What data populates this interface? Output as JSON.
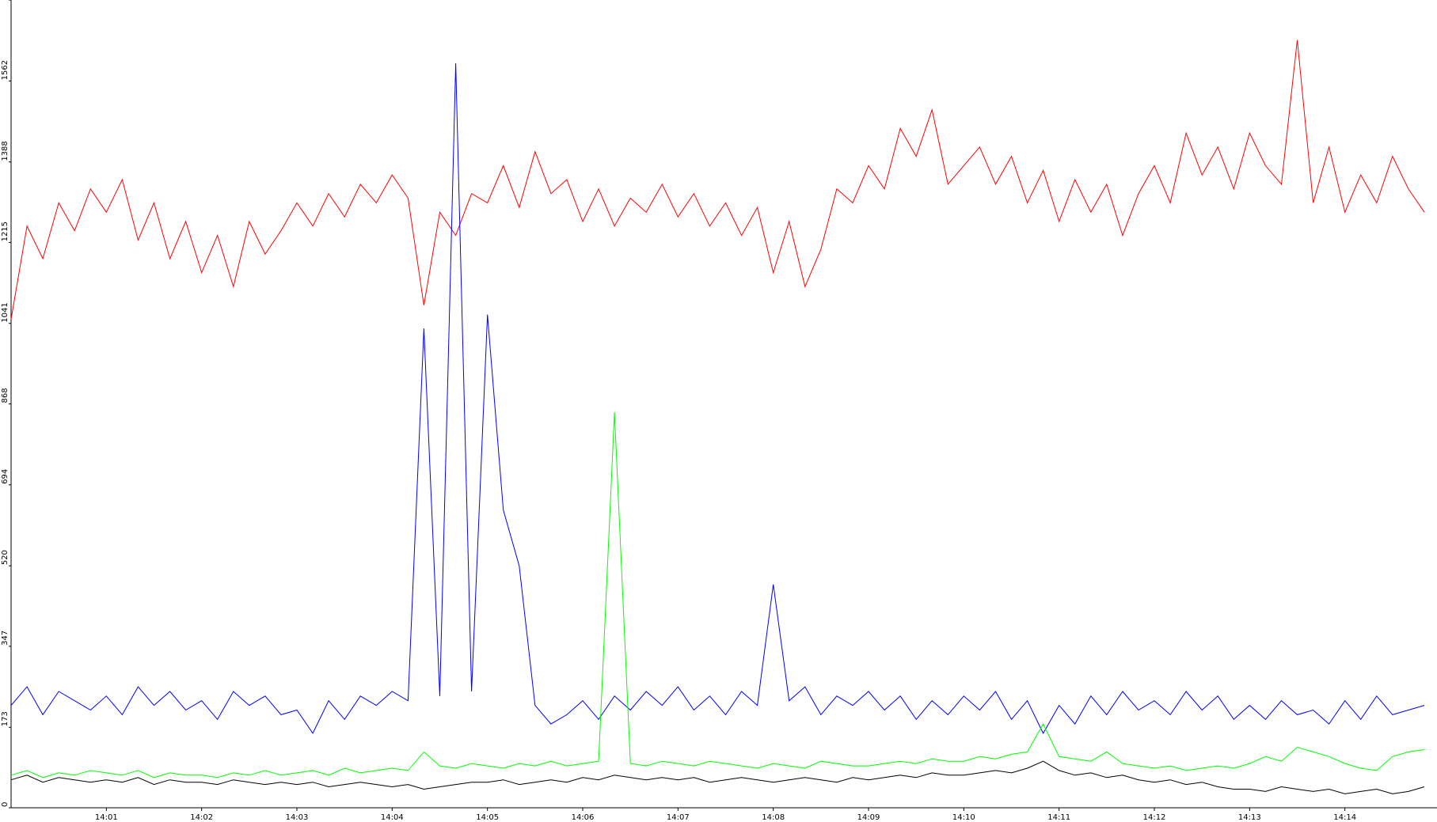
{
  "chart_data": {
    "type": "line",
    "x": [
      0,
      10,
      20,
      30,
      40,
      50,
      60,
      70,
      80,
      90,
      100,
      110,
      120,
      130,
      140,
      150,
      160,
      170,
      180,
      190,
      200,
      210,
      220,
      230,
      240,
      250,
      260,
      270,
      280,
      290,
      300,
      310,
      320,
      330,
      340,
      350,
      360,
      370,
      380,
      390,
      400,
      410,
      420,
      430,
      440,
      450,
      460,
      470,
      480,
      490,
      500,
      510,
      520,
      530,
      540,
      550,
      560,
      570,
      580,
      590,
      600,
      610,
      620,
      630,
      640,
      650,
      660,
      670,
      680,
      690,
      700,
      710,
      720,
      730,
      740,
      750,
      760,
      770,
      780,
      790,
      800,
      810,
      820,
      830,
      840,
      850,
      860,
      870,
      880,
      890
    ],
    "xlim": [
      0,
      898
    ],
    "xticks": [
      {
        "value": 60,
        "label": "14:01"
      },
      {
        "value": 120,
        "label": "14:02"
      },
      {
        "value": 180,
        "label": "14:03"
      },
      {
        "value": 240,
        "label": "14:04"
      },
      {
        "value": 300,
        "label": "14:05"
      },
      {
        "value": 360,
        "label": "14:06"
      },
      {
        "value": 420,
        "label": "14:07"
      },
      {
        "value": 480,
        "label": "14:08"
      },
      {
        "value": 540,
        "label": "14:09"
      },
      {
        "value": 600,
        "label": "14:10"
      },
      {
        "value": 660,
        "label": "14:11"
      },
      {
        "value": 720,
        "label": "14:12"
      },
      {
        "value": 780,
        "label": "14:13"
      },
      {
        "value": 840,
        "label": "14:14"
      }
    ],
    "ylim": [
      0,
      1736
    ],
    "yticks": [
      0,
      173,
      347,
      520,
      694,
      868,
      1041,
      1215,
      1388,
      1562,
      1736
    ],
    "series": [
      {
        "color": "#ff0000",
        "values": [
          1050,
          1250,
          1180,
          1300,
          1240,
          1330,
          1280,
          1350,
          1220,
          1300,
          1180,
          1260,
          1150,
          1230,
          1120,
          1260,
          1190,
          1240,
          1300,
          1250,
          1320,
          1270,
          1340,
          1300,
          1360,
          1310,
          1080,
          1280,
          1230,
          1320,
          1300,
          1380,
          1290,
          1410,
          1320,
          1350,
          1260,
          1330,
          1250,
          1310,
          1280,
          1340,
          1270,
          1320,
          1250,
          1300,
          1230,
          1290,
          1150,
          1260,
          1120,
          1200,
          1330,
          1300,
          1380,
          1330,
          1460,
          1400,
          1500,
          1340,
          1380,
          1420,
          1340,
          1400,
          1300,
          1370,
          1260,
          1350,
          1280,
          1340,
          1230,
          1320,
          1380,
          1300,
          1450,
          1360,
          1420,
          1330,
          1450,
          1380,
          1340,
          1650,
          1300,
          1420,
          1280,
          1360,
          1300,
          1400,
          1330,
          1280
        ]
      },
      {
        "color": "#0000ff",
        "values": [
          220,
          260,
          200,
          250,
          230,
          210,
          240,
          200,
          260,
          220,
          250,
          210,
          230,
          190,
          250,
          220,
          240,
          200,
          210,
          160,
          230,
          190,
          240,
          220,
          250,
          230,
          1030,
          240,
          1600,
          250,
          1060,
          640,
          520,
          220,
          180,
          200,
          230,
          190,
          240,
          210,
          250,
          220,
          260,
          210,
          240,
          200,
          250,
          220,
          480,
          230,
          260,
          200,
          240,
          220,
          250,
          210,
          240,
          190,
          230,
          200,
          240,
          210,
          250,
          190,
          230,
          160,
          220,
          180,
          240,
          200,
          250,
          210,
          230,
          200,
          250,
          210,
          240,
          190,
          220,
          190,
          230,
          200,
          210,
          180,
          230,
          190,
          240,
          200,
          210,
          220
        ]
      },
      {
        "color": "#000000",
        "values": [
          60,
          70,
          55,
          65,
          60,
          55,
          60,
          55,
          65,
          50,
          60,
          55,
          55,
          50,
          60,
          55,
          50,
          55,
          50,
          55,
          45,
          50,
          55,
          50,
          45,
          50,
          40,
          45,
          50,
          55,
          55,
          60,
          50,
          55,
          60,
          55,
          65,
          60,
          70,
          65,
          60,
          65,
          60,
          65,
          55,
          60,
          65,
          60,
          55,
          60,
          65,
          60,
          55,
          65,
          60,
          65,
          70,
          65,
          75,
          70,
          70,
          75,
          80,
          75,
          85,
          100,
          80,
          70,
          75,
          65,
          70,
          60,
          55,
          60,
          50,
          55,
          45,
          40,
          40,
          35,
          45,
          40,
          35,
          40,
          30,
          35,
          40,
          30,
          35,
          45
        ]
      },
      {
        "color": "#00ff00",
        "values": [
          70,
          80,
          65,
          75,
          70,
          80,
          75,
          70,
          80,
          65,
          75,
          70,
          70,
          65,
          75,
          70,
          80,
          70,
          75,
          80,
          70,
          85,
          75,
          80,
          85,
          80,
          120,
          90,
          85,
          95,
          90,
          85,
          95,
          90,
          100,
          90,
          95,
          100,
          850,
          95,
          90,
          100,
          95,
          90,
          100,
          95,
          90,
          85,
          95,
          90,
          85,
          100,
          95,
          90,
          90,
          95,
          100,
          95,
          105,
          100,
          100,
          110,
          105,
          115,
          120,
          180,
          110,
          105,
          100,
          120,
          95,
          90,
          85,
          90,
          80,
          85,
          90,
          85,
          95,
          110,
          100,
          130,
          120,
          110,
          95,
          85,
          80,
          110,
          120,
          125
        ]
      }
    ]
  }
}
